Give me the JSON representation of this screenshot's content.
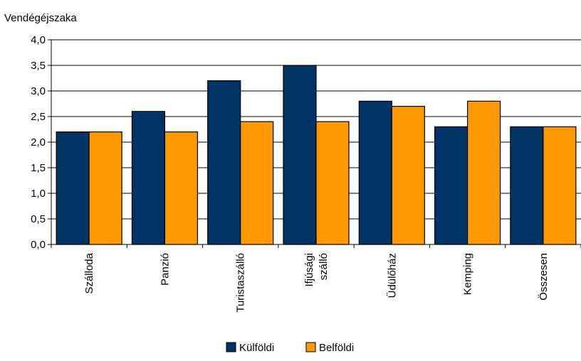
{
  "chart_data": {
    "type": "bar",
    "ylabel": "Vendégéjszaka",
    "xlabel": "",
    "title": "",
    "categories": [
      [
        "Szálloda"
      ],
      [
        "Panzió"
      ],
      [
        "Turistaszálló"
      ],
      [
        "Ifjúsági",
        "szálló"
      ],
      [
        "Üdülőház"
      ],
      [
        "Kemping"
      ],
      [
        "Összesen"
      ]
    ],
    "series": [
      {
        "name": "Külföldi",
        "color": "#003366",
        "values": [
          2.2,
          2.6,
          3.2,
          3.5,
          2.8,
          2.3,
          2.3
        ]
      },
      {
        "name": "Belföldi",
        "color": "#FF9900",
        "values": [
          2.2,
          2.2,
          2.4,
          2.4,
          2.7,
          2.8,
          2.3
        ]
      }
    ],
    "ylim": [
      0,
      4.0
    ],
    "yticks": [
      "0,0",
      "0,5",
      "1,0",
      "1,5",
      "2,0",
      "2,5",
      "3,0",
      "3,5",
      "4,0"
    ],
    "grid": true,
    "legend": "bottom"
  }
}
